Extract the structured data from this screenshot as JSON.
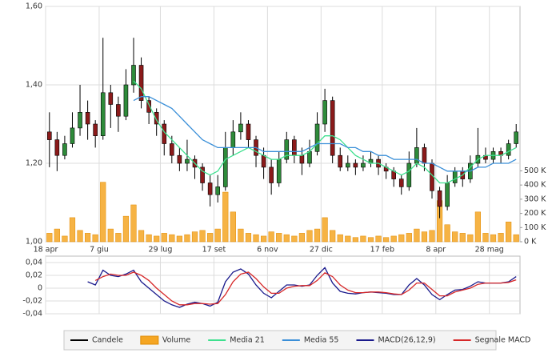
{
  "chart_data": [
    {
      "type": "candlestick",
      "categories": [
        "18 apr",
        null,
        null,
        null,
        null,
        null,
        null,
        "7 giu",
        null,
        null,
        null,
        null,
        null,
        null,
        null,
        "29 lug",
        null,
        null,
        null,
        null,
        null,
        null,
        "17 set",
        null,
        null,
        null,
        null,
        null,
        null,
        "6 nov",
        null,
        null,
        null,
        null,
        null,
        null,
        "27 dic",
        null,
        null,
        null,
        null,
        null,
        null,
        null,
        "17 feb",
        null,
        null,
        null,
        null,
        null,
        null,
        "8 apr",
        null,
        null,
        null,
        null,
        null,
        null,
        "28 mag",
        null,
        null,
        null
      ],
      "ylim": [
        1.0,
        1.6
      ],
      "yticks": [
        {
          "value": 1.0,
          "label": "1,00"
        },
        {
          "value": 1.2,
          "label": "1,20"
        },
        {
          "value": 1.4,
          "label": "1,40"
        },
        {
          "value": 1.6,
          "label": "1,60"
        }
      ],
      "y2lim": [
        0,
        1660000
      ],
      "y2ticks": [
        {
          "value": 0,
          "label": "0 K"
        },
        {
          "value": 100000,
          "label": "100 K"
        },
        {
          "value": 200000,
          "label": "200 K"
        },
        {
          "value": 300000,
          "label": "300 K"
        },
        {
          "value": 400000,
          "label": "400 K"
        },
        {
          "value": 500000,
          "label": "500 K"
        }
      ],
      "grid": true,
      "legend": "bottom",
      "series": [
        {
          "name": "Candele",
          "color": "#000000",
          "up_color": "#2e8b3a",
          "down_color": "#8b1a1a",
          "open": [
            1.28,
            1.26,
            1.22,
            1.25,
            1.29,
            1.33,
            1.3,
            1.27,
            1.38,
            1.35,
            1.32,
            1.4,
            1.45,
            1.36,
            1.33,
            1.3,
            1.25,
            1.22,
            1.2,
            1.21,
            1.19,
            1.15,
            1.12,
            1.14,
            1.24,
            1.28,
            1.3,
            1.26,
            1.22,
            1.19,
            1.15,
            1.21,
            1.26,
            1.22,
            1.2,
            1.23,
            1.3,
            1.36,
            1.22,
            1.19,
            1.2,
            1.19,
            1.2,
            1.21,
            1.19,
            1.18,
            1.16,
            1.14,
            1.2,
            1.24,
            1.2,
            1.13,
            1.09,
            1.15,
            1.18,
            1.16,
            1.2,
            1.22,
            1.21,
            1.23,
            1.22,
            1.25
          ],
          "high": [
            1.33,
            1.28,
            1.27,
            1.33,
            1.4,
            1.36,
            1.31,
            1.52,
            1.4,
            1.37,
            1.44,
            1.52,
            1.47,
            1.37,
            1.34,
            1.31,
            1.27,
            1.24,
            1.26,
            1.22,
            1.2,
            1.17,
            1.17,
            1.28,
            1.31,
            1.33,
            1.31,
            1.27,
            1.24,
            1.21,
            1.23,
            1.28,
            1.27,
            1.24,
            1.26,
            1.33,
            1.39,
            1.37,
            1.24,
            1.22,
            1.21,
            1.22,
            1.23,
            1.22,
            1.2,
            1.19,
            1.17,
            1.23,
            1.29,
            1.25,
            1.21,
            1.14,
            1.17,
            1.19,
            1.19,
            1.22,
            1.29,
            1.24,
            1.24,
            1.24,
            1.26,
            1.3
          ],
          "low": [
            1.19,
            1.18,
            1.21,
            1.24,
            1.27,
            1.26,
            1.24,
            1.26,
            1.29,
            1.28,
            1.31,
            1.38,
            1.34,
            1.3,
            1.27,
            1.22,
            1.2,
            1.18,
            1.18,
            1.16,
            1.13,
            1.09,
            1.1,
            1.13,
            1.22,
            1.26,
            1.24,
            1.19,
            1.16,
            1.12,
            1.14,
            1.2,
            1.2,
            1.17,
            1.19,
            1.22,
            1.28,
            1.2,
            1.18,
            1.18,
            1.17,
            1.18,
            1.19,
            1.17,
            1.16,
            1.14,
            1.12,
            1.13,
            1.19,
            1.18,
            1.11,
            1.06,
            1.08,
            1.14,
            1.14,
            1.15,
            1.19,
            1.2,
            1.2,
            1.2,
            1.21,
            1.24
          ],
          "close": [
            1.26,
            1.22,
            1.25,
            1.29,
            1.33,
            1.3,
            1.27,
            1.38,
            1.35,
            1.32,
            1.4,
            1.45,
            1.36,
            1.33,
            1.3,
            1.25,
            1.22,
            1.2,
            1.21,
            1.19,
            1.15,
            1.12,
            1.14,
            1.24,
            1.28,
            1.3,
            1.26,
            1.22,
            1.19,
            1.15,
            1.21,
            1.26,
            1.22,
            1.2,
            1.23,
            1.3,
            1.36,
            1.22,
            1.19,
            1.2,
            1.19,
            1.2,
            1.21,
            1.19,
            1.18,
            1.16,
            1.14,
            1.2,
            1.24,
            1.2,
            1.13,
            1.09,
            1.15,
            1.18,
            1.16,
            1.2,
            1.22,
            1.21,
            1.23,
            1.22,
            1.25,
            1.28
          ]
        },
        {
          "name": "Volume",
          "color": "#f5a623",
          "axis": "y2",
          "values": [
            60000,
            90000,
            40000,
            170000,
            80000,
            60000,
            50000,
            420000,
            90000,
            60000,
            180000,
            260000,
            80000,
            50000,
            40000,
            60000,
            50000,
            40000,
            50000,
            70000,
            80000,
            60000,
            90000,
            350000,
            210000,
            90000,
            60000,
            50000,
            40000,
            70000,
            60000,
            50000,
            40000,
            60000,
            80000,
            90000,
            170000,
            80000,
            50000,
            40000,
            30000,
            40000,
            30000,
            40000,
            30000,
            40000,
            50000,
            60000,
            90000,
            70000,
            80000,
            290000,
            120000,
            70000,
            60000,
            50000,
            210000,
            60000,
            50000,
            60000,
            140000,
            50000
          ]
        },
        {
          "name": "Media 21",
          "color": "#3ee08e",
          "values": [
            null,
            null,
            null,
            null,
            null,
            null,
            null,
            null,
            null,
            null,
            null,
            1.41,
            1.39,
            1.35,
            1.31,
            1.28,
            1.26,
            1.24,
            1.22,
            1.2,
            1.18,
            1.17,
            1.18,
            1.21,
            1.22,
            1.23,
            1.24,
            1.23,
            1.22,
            1.21,
            1.21,
            1.22,
            1.22,
            1.22,
            1.23,
            1.25,
            1.27,
            1.27,
            1.26,
            1.24,
            1.22,
            1.21,
            1.2,
            1.2,
            1.19,
            1.18,
            1.17,
            1.18,
            1.2,
            1.19,
            1.17,
            1.15,
            1.15,
            1.16,
            1.17,
            1.19,
            1.21,
            1.22,
            1.22,
            1.22,
            1.23,
            1.24
          ]
        },
        {
          "name": "Media 55",
          "color": "#3a8fd8",
          "values": [
            null,
            null,
            null,
            null,
            null,
            null,
            null,
            null,
            null,
            null,
            null,
            1.36,
            1.37,
            1.37,
            1.36,
            1.35,
            1.34,
            1.32,
            1.3,
            1.28,
            1.26,
            1.25,
            1.24,
            1.24,
            1.24,
            1.24,
            1.24,
            1.24,
            1.23,
            1.23,
            1.23,
            1.23,
            1.23,
            1.23,
            1.24,
            1.25,
            1.25,
            1.25,
            1.25,
            1.24,
            1.24,
            1.23,
            1.23,
            1.22,
            1.22,
            1.21,
            1.21,
            1.21,
            1.21,
            1.2,
            1.2,
            1.19,
            1.18,
            1.18,
            1.18,
            1.18,
            1.19,
            1.19,
            1.2,
            1.2,
            1.2,
            1.21
          ]
        }
      ]
    },
    {
      "type": "line",
      "ylim": [
        -0.04,
        0.05
      ],
      "yticks": [
        {
          "value": -0.04,
          "label": "-0,04"
        },
        {
          "value": -0.02,
          "label": "-0,02"
        },
        0,
        {
          "value": 0.02,
          "label": "0,02"
        },
        {
          "value": 0.04,
          "label": "0,04"
        }
      ],
      "grid": true,
      "series": [
        {
          "name": "MACD(26,12,9)",
          "color": "#1a1a8c",
          "values": [
            null,
            null,
            null,
            null,
            null,
            0.01,
            0.005,
            0.028,
            0.02,
            0.018,
            0.022,
            0.028,
            0.01,
            0.0,
            -0.01,
            -0.02,
            -0.026,
            -0.03,
            -0.025,
            -0.022,
            -0.024,
            -0.028,
            -0.022,
            0.01,
            0.025,
            0.03,
            0.022,
            0.005,
            -0.008,
            -0.015,
            -0.005,
            0.005,
            0.005,
            0.003,
            0.005,
            0.02,
            0.032,
            0.008,
            -0.005,
            -0.008,
            -0.009,
            -0.007,
            -0.006,
            -0.007,
            -0.008,
            -0.01,
            -0.01,
            0.005,
            0.015,
            0.005,
            -0.01,
            -0.018,
            -0.01,
            -0.003,
            -0.002,
            0.003,
            0.01,
            0.008,
            0.008,
            0.008,
            0.01,
            0.018
          ]
        },
        {
          "name": "Segnale MACD",
          "color": "#d62728",
          "values": [
            null,
            null,
            null,
            null,
            null,
            null,
            0.012,
            0.018,
            0.022,
            0.02,
            0.02,
            0.025,
            0.02,
            0.012,
            0.0,
            -0.01,
            -0.02,
            -0.026,
            -0.026,
            -0.024,
            -0.024,
            -0.025,
            -0.024,
            -0.01,
            0.01,
            0.022,
            0.025,
            0.015,
            0.002,
            -0.008,
            -0.008,
            0.0,
            0.003,
            0.004,
            0.004,
            0.012,
            0.024,
            0.018,
            0.005,
            -0.003,
            -0.007,
            -0.007,
            -0.006,
            -0.006,
            -0.007,
            -0.009,
            -0.01,
            -0.003,
            0.008,
            0.008,
            -0.002,
            -0.012,
            -0.012,
            -0.006,
            -0.003,
            0.0,
            0.006,
            0.008,
            0.008,
            0.008,
            0.009,
            0.013
          ]
        }
      ]
    }
  ]
}
